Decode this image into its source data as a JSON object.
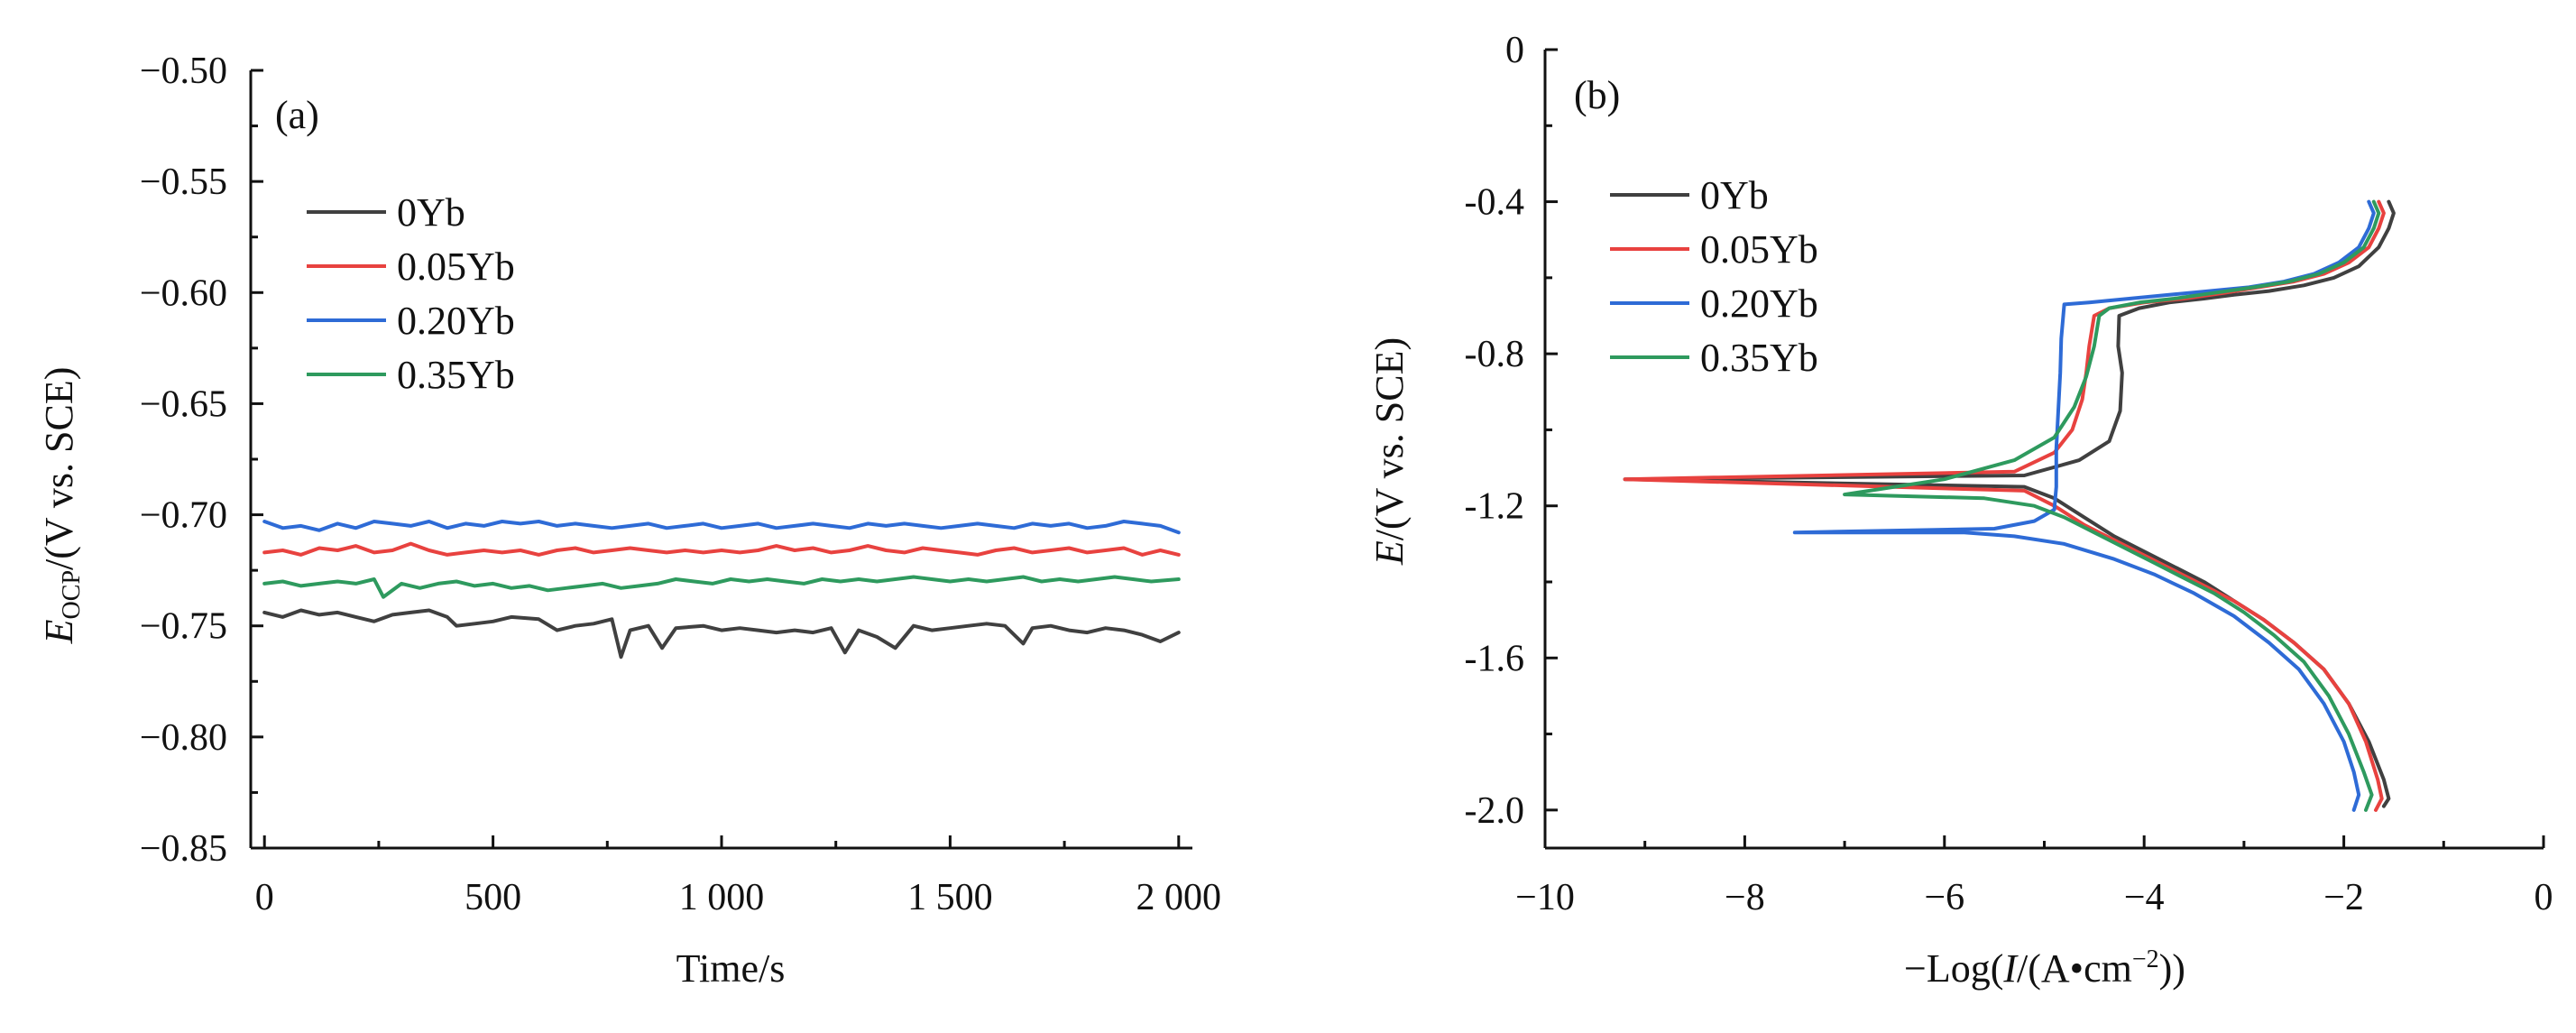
{
  "chart_data": [
    {
      "type": "line",
      "panel_label": "(a)",
      "xlabel": "Time/s",
      "ylabel_main": "E",
      "ylabel_sub": "OCP",
      "ylabel_rest": "/(V vs. SCE)",
      "xlim": [
        -30,
        2030
      ],
      "ylim": [
        -0.85,
        -0.5
      ],
      "xticks": [
        0,
        500,
        1000,
        1500,
        2000
      ],
      "xtick_labels": [
        "0",
        "500",
        "1 000",
        "1 500",
        "2 000"
      ],
      "yticks": [
        -0.85,
        -0.8,
        -0.75,
        -0.7,
        -0.65,
        -0.6,
        -0.55,
        -0.5
      ],
      "ytick_labels": [
        "−0.85",
        "−0.80",
        "−0.75",
        "−0.70",
        "−0.65",
        "−0.60",
        "−0.55",
        "−0.50"
      ],
      "legend_position": "top-left",
      "series": [
        {
          "name": "0Yb",
          "color": "#404040",
          "x": [
            0,
            40,
            80,
            120,
            160,
            200,
            240,
            280,
            320,
            360,
            400,
            420,
            460,
            500,
            540,
            600,
            640,
            680,
            720,
            760,
            780,
            800,
            840,
            870,
            900,
            960,
            1000,
            1040,
            1080,
            1120,
            1160,
            1200,
            1240,
            1270,
            1300,
            1340,
            1380,
            1420,
            1460,
            1500,
            1540,
            1580,
            1620,
            1660,
            1680,
            1720,
            1760,
            1800,
            1840,
            1880,
            1920,
            1960,
            2000
          ],
          "y": [
            -0.744,
            -0.746,
            -0.743,
            -0.745,
            -0.744,
            -0.746,
            -0.748,
            -0.745,
            -0.744,
            -0.743,
            -0.746,
            -0.75,
            -0.749,
            -0.748,
            -0.746,
            -0.747,
            -0.752,
            -0.75,
            -0.749,
            -0.747,
            -0.764,
            -0.752,
            -0.75,
            -0.76,
            -0.751,
            -0.75,
            -0.752,
            -0.751,
            -0.752,
            -0.753,
            -0.752,
            -0.753,
            -0.751,
            -0.762,
            -0.752,
            -0.755,
            -0.76,
            -0.75,
            -0.752,
            -0.751,
            -0.75,
            -0.749,
            -0.75,
            -0.758,
            -0.751,
            -0.75,
            -0.752,
            -0.753,
            -0.751,
            -0.752,
            -0.754,
            -0.757,
            -0.753
          ]
        },
        {
          "name": "0.05Yb",
          "color": "#e8423f",
          "x": [
            0,
            40,
            80,
            120,
            160,
            200,
            240,
            280,
            320,
            360,
            400,
            440,
            480,
            520,
            560,
            600,
            640,
            680,
            720,
            760,
            800,
            840,
            880,
            920,
            960,
            1000,
            1040,
            1080,
            1120,
            1160,
            1200,
            1240,
            1280,
            1320,
            1360,
            1400,
            1440,
            1480,
            1520,
            1560,
            1600,
            1640,
            1680,
            1720,
            1760,
            1800,
            1840,
            1880,
            1920,
            1960,
            2000
          ],
          "y": [
            -0.717,
            -0.716,
            -0.718,
            -0.715,
            -0.716,
            -0.714,
            -0.717,
            -0.716,
            -0.713,
            -0.716,
            -0.718,
            -0.717,
            -0.716,
            -0.717,
            -0.716,
            -0.718,
            -0.716,
            -0.715,
            -0.717,
            -0.716,
            -0.715,
            -0.716,
            -0.717,
            -0.716,
            -0.717,
            -0.716,
            -0.717,
            -0.716,
            -0.714,
            -0.716,
            -0.715,
            -0.717,
            -0.716,
            -0.714,
            -0.716,
            -0.717,
            -0.715,
            -0.716,
            -0.717,
            -0.718,
            -0.716,
            -0.715,
            -0.717,
            -0.716,
            -0.715,
            -0.717,
            -0.716,
            -0.715,
            -0.718,
            -0.716,
            -0.718
          ]
        },
        {
          "name": "0.20Yb",
          "color": "#2e6bd6",
          "x": [
            0,
            40,
            80,
            120,
            160,
            200,
            240,
            280,
            320,
            360,
            400,
            440,
            480,
            520,
            560,
            600,
            640,
            680,
            720,
            760,
            800,
            840,
            880,
            920,
            960,
            1000,
            1040,
            1080,
            1120,
            1160,
            1200,
            1240,
            1280,
            1320,
            1360,
            1400,
            1440,
            1480,
            1520,
            1560,
            1600,
            1640,
            1680,
            1720,
            1760,
            1800,
            1840,
            1880,
            1920,
            1960,
            2000
          ],
          "y": [
            -0.703,
            -0.706,
            -0.705,
            -0.707,
            -0.704,
            -0.706,
            -0.703,
            -0.704,
            -0.705,
            -0.703,
            -0.706,
            -0.704,
            -0.705,
            -0.703,
            -0.704,
            -0.703,
            -0.705,
            -0.704,
            -0.705,
            -0.706,
            -0.705,
            -0.704,
            -0.706,
            -0.705,
            -0.704,
            -0.706,
            -0.705,
            -0.704,
            -0.706,
            -0.705,
            -0.704,
            -0.705,
            -0.706,
            -0.704,
            -0.705,
            -0.704,
            -0.705,
            -0.706,
            -0.705,
            -0.704,
            -0.705,
            -0.706,
            -0.704,
            -0.705,
            -0.704,
            -0.706,
            -0.705,
            -0.703,
            -0.704,
            -0.705,
            -0.708
          ]
        },
        {
          "name": "0.35Yb",
          "color": "#2e9a5e",
          "x": [
            0,
            40,
            80,
            120,
            160,
            200,
            240,
            260,
            300,
            340,
            380,
            420,
            460,
            500,
            540,
            580,
            620,
            660,
            700,
            740,
            780,
            820,
            860,
            900,
            940,
            980,
            1020,
            1060,
            1100,
            1140,
            1180,
            1220,
            1260,
            1300,
            1340,
            1380,
            1420,
            1460,
            1500,
            1540,
            1580,
            1620,
            1660,
            1700,
            1740,
            1780,
            1820,
            1860,
            1900,
            1940,
            2000
          ],
          "y": [
            -0.731,
            -0.73,
            -0.732,
            -0.731,
            -0.73,
            -0.731,
            -0.729,
            -0.737,
            -0.731,
            -0.733,
            -0.731,
            -0.73,
            -0.732,
            -0.731,
            -0.733,
            -0.732,
            -0.734,
            -0.733,
            -0.732,
            -0.731,
            -0.733,
            -0.732,
            -0.731,
            -0.729,
            -0.73,
            -0.731,
            -0.729,
            -0.73,
            -0.729,
            -0.73,
            -0.731,
            -0.729,
            -0.73,
            -0.729,
            -0.73,
            -0.729,
            -0.728,
            -0.729,
            -0.73,
            -0.729,
            -0.73,
            -0.729,
            -0.728,
            -0.73,
            -0.729,
            -0.73,
            -0.729,
            -0.728,
            -0.729,
            -0.73,
            -0.729
          ]
        }
      ]
    },
    {
      "type": "line",
      "panel_label": "(b)",
      "xlabel_pre": "−Log(",
      "xlabel_italic": "I",
      "xlabel_mid": "/(A•cm",
      "xlabel_sup": "−2",
      "xlabel_post": "))",
      "ylabel_italic": "E",
      "ylabel_rest": "/(V vs. SCE)",
      "xlim": [
        -10,
        0
      ],
      "ylim": [
        -2.1,
        0
      ],
      "xticks": [
        -10,
        -8,
        -6,
        -4,
        -2,
        0
      ],
      "xtick_labels": [
        "−10",
        "−8",
        "−6",
        "−4",
        "−2",
        "0"
      ],
      "yticks": [
        0,
        -0.4,
        -0.8,
        -1.2,
        -1.6,
        -2.0
      ],
      "ytick_labels": [
        "0",
        "-0.4",
        "-0.8",
        "-1.2",
        "-1.6",
        "-2.0"
      ],
      "legend_position": "top-left",
      "series": [
        {
          "name": "0Yb",
          "color": "#404040",
          "x": [
            -1.55,
            -1.5,
            -1.55,
            -1.65,
            -1.85,
            -2.1,
            -2.4,
            -2.75,
            -3.1,
            -3.4,
            -3.75,
            -4.05,
            -4.25,
            -4.26,
            -4.22,
            -4.24,
            -4.35,
            -4.65,
            -5.2,
            -9.2,
            -5.2,
            -4.9,
            -4.6,
            -4.3,
            -4.0,
            -3.7,
            -3.4,
            -3.1,
            -2.8,
            -2.5,
            -2.2,
            -1.95,
            -1.75,
            -1.6,
            -1.55,
            -1.6
          ],
          "y": [
            -0.4,
            -0.43,
            -0.47,
            -0.52,
            -0.57,
            -0.6,
            -0.62,
            -0.635,
            -0.645,
            -0.655,
            -0.665,
            -0.68,
            -0.7,
            -0.78,
            -0.85,
            -0.95,
            -1.03,
            -1.08,
            -1.12,
            -1.13,
            -1.15,
            -1.18,
            -1.23,
            -1.28,
            -1.32,
            -1.36,
            -1.4,
            -1.45,
            -1.5,
            -1.56,
            -1.63,
            -1.72,
            -1.82,
            -1.92,
            -1.97,
            -1.99
          ]
        },
        {
          "name": "0.05Yb",
          "color": "#e8423f",
          "x": [
            -1.65,
            -1.6,
            -1.65,
            -1.75,
            -1.95,
            -2.2,
            -2.5,
            -2.85,
            -3.2,
            -3.6,
            -4.0,
            -4.35,
            -4.5,
            -4.55,
            -4.58,
            -4.62,
            -4.72,
            -4.9,
            -5.3,
            -9.2,
            -5.2,
            -4.9,
            -4.6,
            -4.3,
            -4.0,
            -3.7,
            -3.4,
            -3.1,
            -2.8,
            -2.5,
            -2.2,
            -1.95,
            -1.78,
            -1.66,
            -1.62,
            -1.68
          ],
          "y": [
            -0.4,
            -0.43,
            -0.47,
            -0.52,
            -0.56,
            -0.59,
            -0.61,
            -0.625,
            -0.64,
            -0.655,
            -0.665,
            -0.68,
            -0.7,
            -0.78,
            -0.85,
            -0.92,
            -1.0,
            -1.06,
            -1.11,
            -1.13,
            -1.16,
            -1.2,
            -1.25,
            -1.29,
            -1.33,
            -1.37,
            -1.41,
            -1.45,
            -1.5,
            -1.56,
            -1.63,
            -1.72,
            -1.82,
            -1.92,
            -1.97,
            -2.0
          ]
        },
        {
          "name": "0.20Yb",
          "color": "#2e6bd6",
          "x": [
            -1.75,
            -1.7,
            -1.75,
            -1.85,
            -2.05,
            -2.3,
            -2.6,
            -2.95,
            -3.35,
            -3.75,
            -4.15,
            -4.55,
            -4.8,
            -4.83,
            -4.84,
            -4.86,
            -4.88,
            -4.88,
            -4.9,
            -5.1,
            -5.5,
            -7.5,
            -5.8,
            -5.3,
            -4.8,
            -4.3,
            -3.9,
            -3.5,
            -3.1,
            -2.75,
            -2.45,
            -2.2,
            -2.0,
            -1.9,
            -1.85,
            -1.9
          ],
          "y": [
            -0.4,
            -0.43,
            -0.47,
            -0.52,
            -0.56,
            -0.59,
            -0.61,
            -0.625,
            -0.635,
            -0.645,
            -0.655,
            -0.665,
            -0.67,
            -0.76,
            -0.85,
            -0.95,
            -1.05,
            -1.15,
            -1.21,
            -1.24,
            -1.26,
            -1.27,
            -1.27,
            -1.28,
            -1.3,
            -1.34,
            -1.38,
            -1.43,
            -1.49,
            -1.56,
            -1.63,
            -1.72,
            -1.82,
            -1.9,
            -1.96,
            -2.0
          ]
        },
        {
          "name": "0.35Yb",
          "color": "#2e9a5e",
          "x": [
            -1.7,
            -1.65,
            -1.7,
            -1.8,
            -2.0,
            -2.25,
            -2.55,
            -2.9,
            -3.3,
            -3.7,
            -4.05,
            -4.35,
            -4.45,
            -4.5,
            -4.58,
            -4.7,
            -4.9,
            -5.3,
            -6.0,
            -7.0,
            -5.6,
            -5.1,
            -4.8,
            -4.5,
            -4.2,
            -3.9,
            -3.6,
            -3.3,
            -3.0,
            -2.7,
            -2.4,
            -2.15,
            -1.95,
            -1.8,
            -1.72,
            -1.78
          ],
          "y": [
            -0.4,
            -0.43,
            -0.47,
            -0.52,
            -0.56,
            -0.59,
            -0.61,
            -0.625,
            -0.64,
            -0.655,
            -0.665,
            -0.68,
            -0.7,
            -0.78,
            -0.86,
            -0.94,
            -1.02,
            -1.08,
            -1.13,
            -1.17,
            -1.18,
            -1.2,
            -1.23,
            -1.27,
            -1.31,
            -1.35,
            -1.39,
            -1.43,
            -1.48,
            -1.54,
            -1.61,
            -1.7,
            -1.8,
            -1.9,
            -1.96,
            -2.0
          ]
        }
      ]
    }
  ]
}
